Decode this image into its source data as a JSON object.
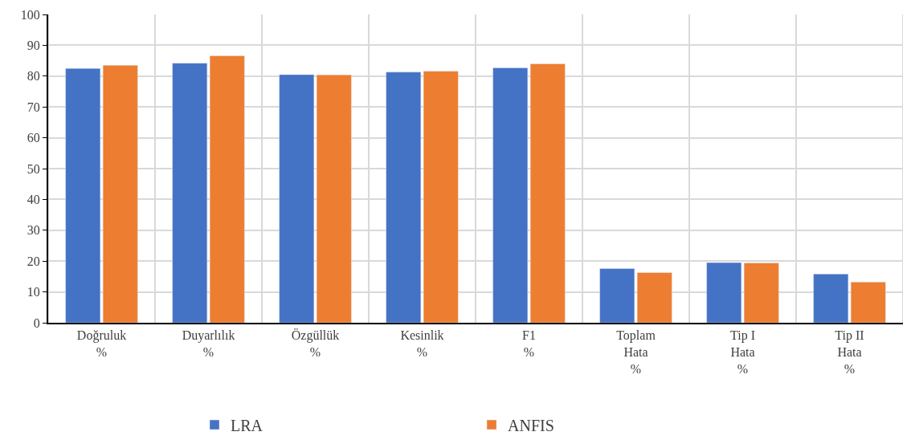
{
  "chart_data": {
    "type": "bar",
    "categories": [
      "Doğruluk\n%",
      "Duyarlılık\n%",
      "Özgüllük\n%",
      "Kesinlik\n%",
      "F1\n%",
      "Toplam\nHata\n%",
      "Tip I\nHata\n%",
      "Tip II\nHata\n%"
    ],
    "series": [
      {
        "name": "LRA",
        "color": "#4472c4",
        "values": [
          82.5,
          84.2,
          80.5,
          81.3,
          82.7,
          17.6,
          19.5,
          15.8
        ]
      },
      {
        "name": "ANFIS",
        "color": "#ed7d31",
        "values": [
          83.5,
          86.6,
          80.4,
          81.6,
          84.0,
          16.3,
          19.4,
          13.2
        ]
      }
    ],
    "ylim": [
      0,
      100
    ],
    "yticks": [
      0,
      10,
      20,
      30,
      40,
      50,
      60,
      70,
      80,
      90,
      100
    ],
    "grid": true,
    "legend": "bottom"
  }
}
